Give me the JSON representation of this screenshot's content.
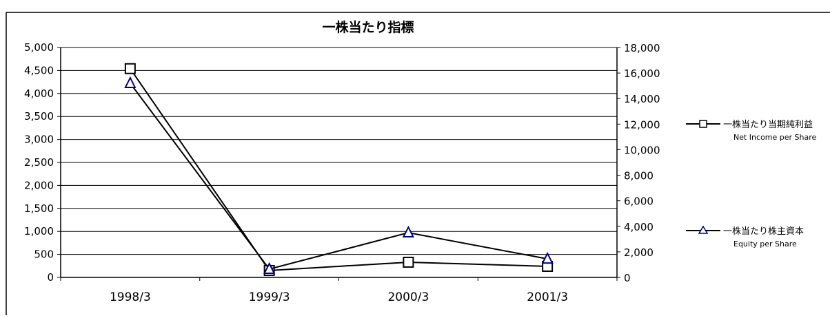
{
  "chart_data": {
    "type": "line",
    "title": "一株当たり指標",
    "categories": [
      "1998/3",
      "1999/3",
      "2000/3",
      "2001/3"
    ],
    "y_left": {
      "ylim": [
        0,
        5000
      ],
      "ticks": [
        "0",
        "500",
        "1,000",
        "1,500",
        "2,000",
        "2,500",
        "3,000",
        "3,500",
        "4,000",
        "4,500",
        "5,000"
      ]
    },
    "y_right": {
      "ylim": [
        0,
        18000
      ],
      "ticks": [
        "0",
        "2,000",
        "4,000",
        "6,000",
        "8,000",
        "10,000",
        "12,000",
        "14,000",
        "16,000",
        "18,000"
      ]
    },
    "series": [
      {
        "name": "一株当たり当期純利益",
        "name_en": "Net Income per Share",
        "axis": "left",
        "marker": "square",
        "color": "#000000",
        "values": [
          4540,
          150,
          330,
          240
        ]
      },
      {
        "name": "一株当たり株主資本",
        "name_en": "Equity per Share",
        "axis": "right",
        "marker": "triangle",
        "color": "#000080",
        "values": [
          15200,
          650,
          3500,
          1450
        ]
      }
    ],
    "grid": true,
    "legend": "right"
  }
}
